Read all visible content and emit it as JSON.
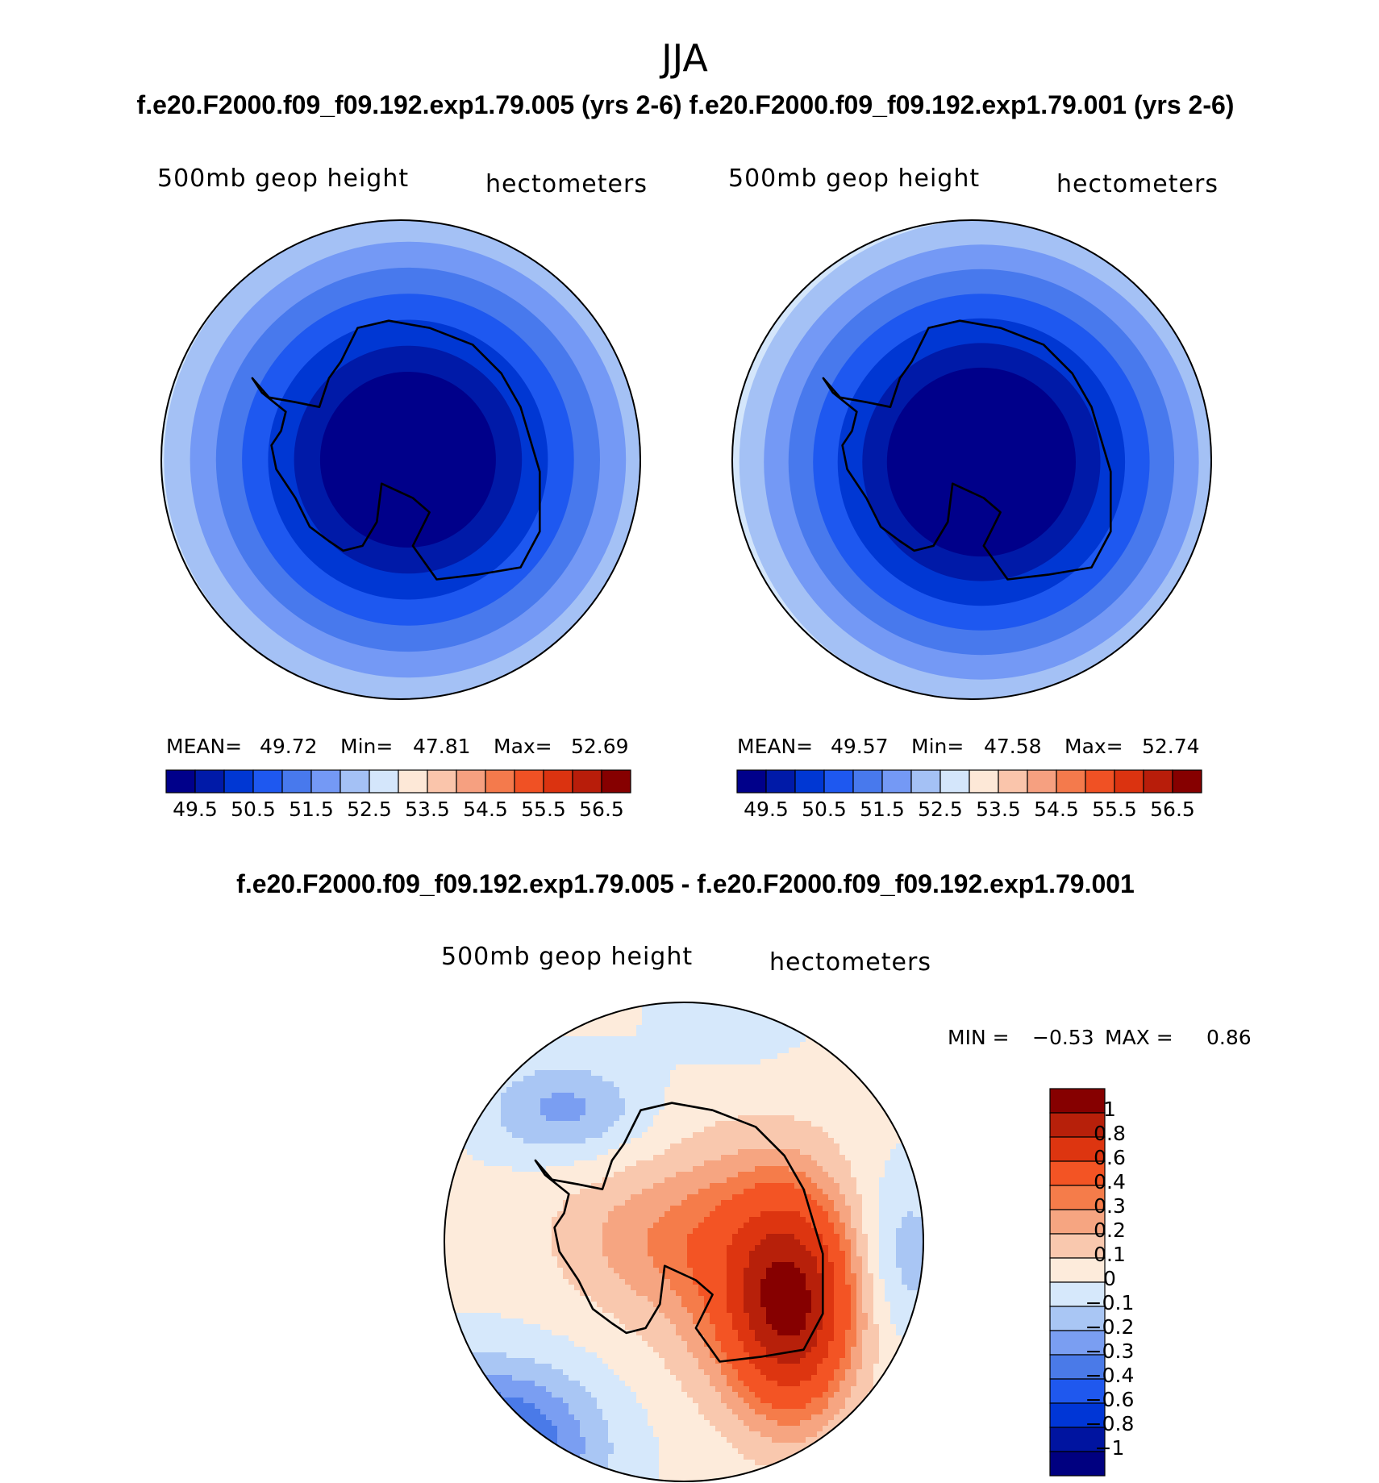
{
  "figure": {
    "season": "JJA",
    "case_title": "f.e20.F2000.f09_f09.192.exp1.79.005 (yrs 2-6) f.e20.F2000.f09_f09.192.exp1.79.001 (yrs 2-6)",
    "diff_title": "f.e20.F2000.f09_f09.192.exp1.79.005 - f.e20.F2000.f09_f09.192.exp1.79.001"
  },
  "colors": {
    "land_outline": "#000000",
    "abs_palette": [
      "#00008a",
      "#001aa8",
      "#0037d3",
      "#1e58f0",
      "#4879ed",
      "#7499f5",
      "#a4c1f5",
      "#d4e6fb",
      "#fde8d7",
      "#fac5ab",
      "#f6a080",
      "#f47a4c",
      "#f05124",
      "#db3310",
      "#b81d0a",
      "#860000"
    ],
    "diff_palette": [
      "#000080",
      "#0014a0",
      "#0036d6",
      "#1f58ee",
      "#4a7ae8",
      "#7a9ef2",
      "#a9c6f4",
      "#d6e8fb",
      "#fdebdb",
      "#f9c8ae",
      "#f6a581",
      "#f57c4a",
      "#f35424",
      "#dd3510",
      "#b7200a",
      "#860000"
    ]
  },
  "chart_data": [
    {
      "type": "heatmap",
      "projection": "south polar stereographic",
      "case": "f.e20.F2000.f09_f09.192.exp1.79.005 (yrs 2-6)",
      "left_label": "500mb geop height",
      "right_label": "hectometers",
      "stats": {
        "mean_label": "MEAN=",
        "mean": "49.72",
        "min_label": "Min=",
        "min": "47.81",
        "max_label": "Max=",
        "max": "52.69"
      },
      "contour_levels": [
        "49.5",
        "50.5",
        "51.5",
        "52.5",
        "53.5",
        "54.5",
        "55.5",
        "56.5"
      ],
      "level_values": [
        49.5,
        50,
        50.5,
        51,
        51.5,
        52,
        52.5,
        53,
        53.5,
        54,
        54.5,
        55,
        55.5,
        56,
        56.5
      ],
      "field": {
        "min": 47.81,
        "max": 52.69,
        "pole_offset": [
          0.03,
          0.0
        ]
      }
    },
    {
      "type": "heatmap",
      "projection": "south polar stereographic",
      "case": "f.e20.F2000.f09_f09.192.exp1.79.001 (yrs 2-6)",
      "left_label": "500mb geop height",
      "right_label": "hectometers",
      "stats": {
        "mean_label": "MEAN=",
        "mean": "49.57",
        "min_label": "Min=",
        "min": "47.58",
        "max_label": "Max=",
        "max": "52.74"
      },
      "contour_levels": [
        "49.5",
        "50.5",
        "51.5",
        "52.5",
        "53.5",
        "54.5",
        "55.5",
        "56.5"
      ],
      "level_values": [
        49.5,
        50,
        50.5,
        51,
        51.5,
        52,
        52.5,
        53,
        53.5,
        54,
        54.5,
        55,
        55.5,
        56,
        56.5
      ],
      "field": {
        "min": 47.58,
        "max": 52.74,
        "pole_offset": [
          0.04,
          0.01
        ]
      }
    },
    {
      "type": "heatmap",
      "projection": "south polar stereographic",
      "case": "difference 005 - 001",
      "left_label": "500mb geop height",
      "right_label": "hectometers",
      "stats": {
        "min_label": "MIN =",
        "min": "−0.53",
        "max_label": "MAX =",
        "max": "0.86"
      },
      "contour_levels": [
        "1",
        "0.8",
        "0.6",
        "0.4",
        "0.3",
        "0.2",
        "0.1",
        "0",
        "−0.1",
        "−0.2",
        "−0.3",
        "−0.4",
        "−0.6",
        "−0.8",
        "−1"
      ],
      "level_values": [
        -1,
        -0.8,
        -0.6,
        -0.4,
        -0.3,
        -0.2,
        -0.1,
        0,
        0.1,
        0.2,
        0.3,
        0.4,
        0.6,
        0.8,
        1
      ],
      "field": {
        "min": -0.53,
        "max": 0.86
      }
    }
  ]
}
